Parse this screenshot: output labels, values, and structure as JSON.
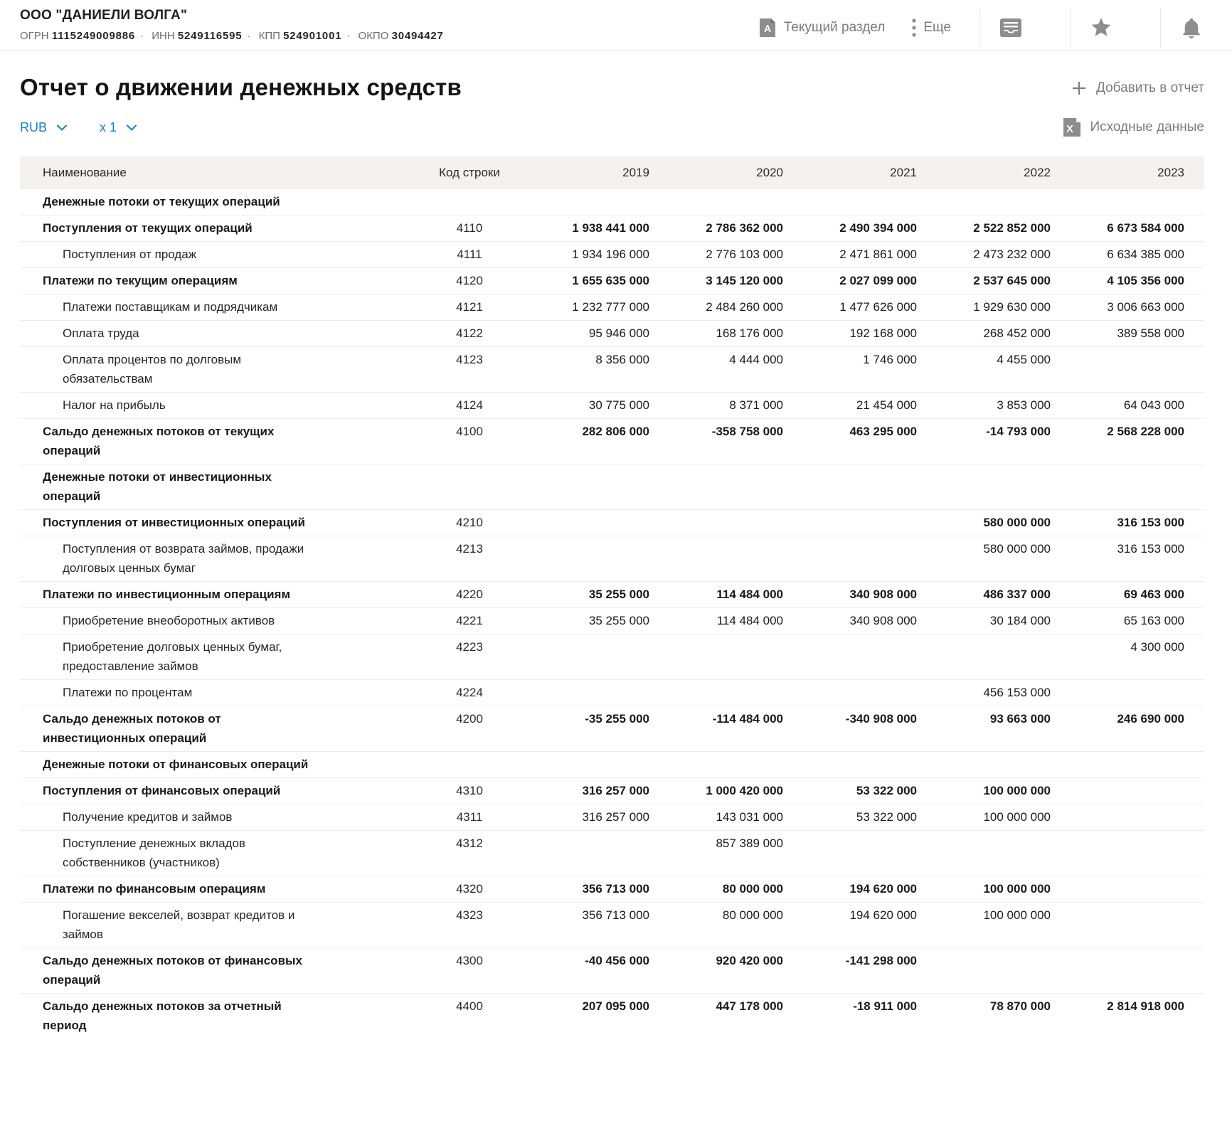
{
  "company": {
    "name": "ООО \"ДАНИЕЛИ ВОЛГА\"",
    "registry": [
      {
        "label": "ОГРН",
        "value": "1115249009886"
      },
      {
        "label": "ИНН",
        "value": "5249116595"
      },
      {
        "label": "КПП",
        "value": "524901001"
      },
      {
        "label": "ОКПО",
        "value": "30494427"
      }
    ]
  },
  "topbar": {
    "current_section": "Текущий раздел",
    "more": "Еще",
    "icons": [
      "pdf-icon",
      "kebab-icon",
      "inbox-icon",
      "star-icon",
      "bell-icon"
    ]
  },
  "page": {
    "title": "Отчет о движении денежных средств",
    "add_to_report": "Добавить в отчет",
    "source_data": "Исходные данные"
  },
  "controls": {
    "currency": "RUB",
    "multiplier": "x 1"
  },
  "colors": {
    "accent_blue": "#1a80c5",
    "header_band": "#f5f1ec",
    "muted_gray": "#7d7d7d"
  },
  "table": {
    "columns": {
      "name": "Наименование",
      "code": "Код строки",
      "years": [
        "2019",
        "2020",
        "2021",
        "2022",
        "2023"
      ]
    },
    "rows": [
      {
        "type": "section",
        "label": "Денежные потоки от текущих операций",
        "code": "",
        "values": [
          "",
          "",
          "",
          "",
          ""
        ]
      },
      {
        "type": "bold",
        "label": "Поступления от текущих операций",
        "code": "4110",
        "values": [
          "1 938 441 000",
          "2 786 362 000",
          "2 490 394 000",
          "2 522 852 000",
          "6 673 584 000"
        ]
      },
      {
        "type": "sub",
        "label": "Поступления от продаж",
        "code": "4111",
        "values": [
          "1 934 196 000",
          "2 776 103 000",
          "2 471 861 000",
          "2 473 232 000",
          "6 634 385 000"
        ]
      },
      {
        "type": "bold",
        "label": "Платежи по текущим операциям",
        "code": "4120",
        "values": [
          "1 655 635 000",
          "3 145 120 000",
          "2 027 099 000",
          "2 537 645 000",
          "4 105 356 000"
        ]
      },
      {
        "type": "sub",
        "label": "Платежи поставщикам и подрядчикам",
        "code": "4121",
        "values": [
          "1 232 777 000",
          "2 484 260 000",
          "1 477 626 000",
          "1 929 630 000",
          "3 006 663 000"
        ]
      },
      {
        "type": "sub",
        "label": "Оплата труда",
        "code": "4122",
        "values": [
          "95 946 000",
          "168 176 000",
          "192 168 000",
          "268 452 000",
          "389 558 000"
        ]
      },
      {
        "type": "sub",
        "label": "Оплата процентов по долговым обязательствам",
        "code": "4123",
        "values": [
          "8 356 000",
          "4 444 000",
          "1 746 000",
          "4 455 000",
          ""
        ]
      },
      {
        "type": "sub",
        "label": "Налог на прибыль",
        "code": "4124",
        "values": [
          "30 775 000",
          "8 371 000",
          "21 454 000",
          "3 853 000",
          "64 043 000"
        ]
      },
      {
        "type": "bold",
        "label": "Сальдо денежных потоков от текущих операций",
        "code": "4100",
        "values": [
          "282 806 000",
          "-358 758 000",
          "463 295 000",
          "-14 793 000",
          "2 568 228 000"
        ]
      },
      {
        "type": "section",
        "label": "Денежные потоки от инвестиционных операций",
        "code": "",
        "values": [
          "",
          "",
          "",
          "",
          ""
        ]
      },
      {
        "type": "bold",
        "label": "Поступления от инвестиционных операций",
        "code": "4210",
        "values": [
          "",
          "",
          "",
          "580 000 000",
          "316 153 000"
        ]
      },
      {
        "type": "sub",
        "label": "Поступления от возврата займов, продажи долговых ценных бумаг",
        "code": "4213",
        "values": [
          "",
          "",
          "",
          "580 000 000",
          "316 153 000"
        ]
      },
      {
        "type": "bold",
        "label": "Платежи по инвестиционным операциям",
        "code": "4220",
        "values": [
          "35 255 000",
          "114 484 000",
          "340 908 000",
          "486 337 000",
          "69 463 000"
        ]
      },
      {
        "type": "sub",
        "label": "Приобретение внеоборотных активов",
        "code": "4221",
        "values": [
          "35 255 000",
          "114 484 000",
          "340 908 000",
          "30 184 000",
          "65 163 000"
        ]
      },
      {
        "type": "sub",
        "label": "Приобретение долговых ценных бумаг, предоставление займов",
        "code": "4223",
        "values": [
          "",
          "",
          "",
          "",
          "4 300 000"
        ]
      },
      {
        "type": "sub",
        "label": "Платежи по процентам",
        "code": "4224",
        "values": [
          "",
          "",
          "",
          "456 153 000",
          ""
        ]
      },
      {
        "type": "bold",
        "label": "Сальдо денежных потоков от инвестиционных операций",
        "code": "4200",
        "values": [
          "-35 255 000",
          "-114 484 000",
          "-340 908 000",
          "93 663 000",
          "246 690 000"
        ]
      },
      {
        "type": "section",
        "label": "Денежные потоки от финансовых операций",
        "code": "",
        "values": [
          "",
          "",
          "",
          "",
          ""
        ]
      },
      {
        "type": "bold",
        "label": "Поступления от финансовых операций",
        "code": "4310",
        "values": [
          "316 257 000",
          "1 000 420 000",
          "53 322 000",
          "100 000 000",
          ""
        ]
      },
      {
        "type": "sub",
        "label": "Получение кредитов и займов",
        "code": "4311",
        "values": [
          "316 257 000",
          "143 031 000",
          "53 322 000",
          "100 000 000",
          ""
        ]
      },
      {
        "type": "sub",
        "label": "Поступление денежных вкладов собственников (участников)",
        "code": "4312",
        "values": [
          "",
          "857 389 000",
          "",
          "",
          ""
        ]
      },
      {
        "type": "bold",
        "label": "Платежи по финансовым операциям",
        "code": "4320",
        "values": [
          "356 713 000",
          "80 000 000",
          "194 620 000",
          "100 000 000",
          ""
        ]
      },
      {
        "type": "sub",
        "label": "Погашение векселей, возврат кредитов и займов",
        "code": "4323",
        "values": [
          "356 713 000",
          "80 000 000",
          "194 620 000",
          "100 000 000",
          ""
        ]
      },
      {
        "type": "bold",
        "label": "Сальдо денежных потоков от финансовых операций",
        "code": "4300",
        "values": [
          "-40 456 000",
          "920 420 000",
          "-141 298 000",
          "",
          ""
        ]
      },
      {
        "type": "bold",
        "label": "Сальдо денежных потоков за отчетный период",
        "code": "4400",
        "values": [
          "207 095 000",
          "447 178 000",
          "-18 911 000",
          "78 870 000",
          "2 814 918 000"
        ]
      }
    ]
  }
}
